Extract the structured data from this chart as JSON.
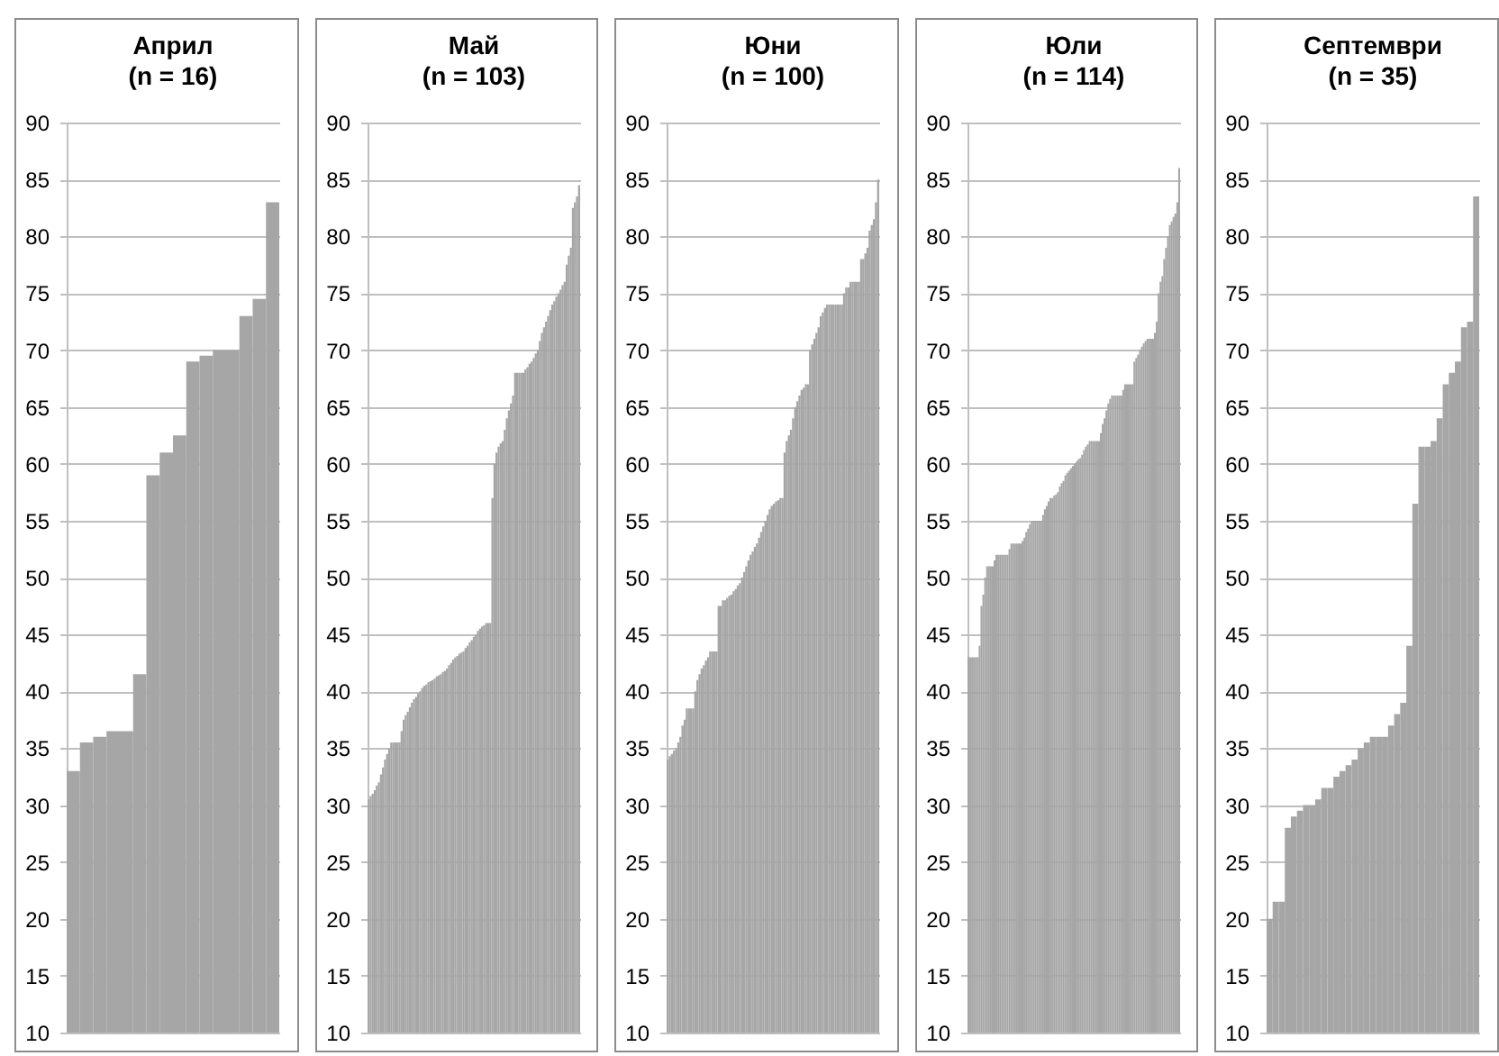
{
  "chart_data": [
    {
      "type": "bar",
      "title": "Април\n(n = 16)",
      "color": "#a6a6a6",
      "ylim": [
        10,
        90
      ],
      "yticks": [
        10,
        15,
        20,
        25,
        30,
        35,
        40,
        45,
        50,
        55,
        60,
        65,
        70,
        75,
        80,
        85,
        90
      ],
      "grid": "y",
      "tick_labels": "y",
      "categories": [
        null,
        null,
        null,
        null,
        null,
        null,
        null,
        null,
        null,
        null,
        null,
        null,
        null,
        null,
        null,
        null
      ],
      "values": [
        33,
        35.5,
        36,
        36.5,
        36.5,
        41.5,
        59,
        61,
        62.5,
        69,
        69.5,
        70,
        70,
        73,
        74.5,
        83
      ]
    },
    {
      "type": "bar",
      "title": "Май\n(n = 103)",
      "color": "#a6a6a6",
      "ylim": [
        10,
        90
      ],
      "yticks": [
        10,
        15,
        20,
        25,
        30,
        35,
        40,
        45,
        50,
        55,
        60,
        65,
        70,
        75,
        80,
        85,
        90
      ],
      "grid": "y",
      "tick_labels": "y",
      "categories": [
        null,
        null,
        null,
        null,
        null,
        null,
        null,
        null,
        null,
        null,
        null,
        null,
        null,
        null,
        null,
        null,
        null,
        null,
        null,
        null,
        null,
        null,
        null,
        null,
        null,
        null,
        null,
        null,
        null,
        null,
        null,
        null,
        null,
        null,
        null,
        null,
        null,
        null,
        null,
        null,
        null,
        null,
        null,
        null,
        null,
        null,
        null,
        null,
        null,
        null,
        null,
        null,
        null,
        null,
        null,
        null,
        null,
        null,
        null,
        null,
        null,
        null,
        null,
        null,
        null,
        null,
        null,
        null,
        null,
        null,
        null,
        null,
        null,
        null,
        null,
        null,
        null,
        null,
        null,
        null,
        null,
        null,
        null,
        null,
        null,
        null,
        null,
        null,
        null,
        null,
        null,
        null,
        null,
        null,
        null,
        null,
        null,
        null,
        null,
        null,
        null,
        null,
        null
      ],
      "values": [
        30.5,
        30.8,
        31,
        31.3,
        31.7,
        32,
        32.7,
        33.3,
        34,
        34.5,
        35,
        35.5,
        35.5,
        35.5,
        35.5,
        35.5,
        36.5,
        37.5,
        37.9,
        38.2,
        38.6,
        39,
        39.3,
        39.5,
        39.8,
        40,
        40.3,
        40.5,
        40.6,
        40.8,
        40.9,
        41,
        41.1,
        41.3,
        41.4,
        41.5,
        41.7,
        41.8,
        42,
        42.3,
        42.5,
        42.8,
        43,
        43.1,
        43.3,
        43.4,
        43.5,
        43.8,
        44,
        44.3,
        44.5,
        44.8,
        45,
        45.3,
        45.5,
        45.7,
        45.8,
        46,
        46,
        46,
        57,
        60,
        61,
        61.5,
        61.8,
        62,
        63,
        64,
        64.7,
        65.3,
        66,
        68,
        68,
        68,
        68,
        68,
        68.3,
        68.5,
        68.8,
        69,
        69.3,
        69.7,
        70,
        70.8,
        71.5,
        72,
        72.5,
        73,
        73.5,
        74,
        74.3,
        74.7,
        75,
        75.3,
        75.7,
        76,
        77.5,
        78.3,
        79,
        82.5,
        83,
        83.5,
        84.5
      ]
    },
    {
      "type": "bar",
      "title": "Юни\n(n = 100)",
      "color": "#a6a6a6",
      "ylim": [
        10,
        90
      ],
      "yticks": [
        10,
        15,
        20,
        25,
        30,
        35,
        40,
        45,
        50,
        55,
        60,
        65,
        70,
        75,
        80,
        85,
        90
      ],
      "grid": "y",
      "tick_labels": "y",
      "categories": [
        null,
        null,
        null,
        null,
        null,
        null,
        null,
        null,
        null,
        null,
        null,
        null,
        null,
        null,
        null,
        null,
        null,
        null,
        null,
        null,
        null,
        null,
        null,
        null,
        null,
        null,
        null,
        null,
        null,
        null,
        null,
        null,
        null,
        null,
        null,
        null,
        null,
        null,
        null,
        null,
        null,
        null,
        null,
        null,
        null,
        null,
        null,
        null,
        null,
        null,
        null,
        null,
        null,
        null,
        null,
        null,
        null,
        null,
        null,
        null,
        null,
        null,
        null,
        null,
        null,
        null,
        null,
        null,
        null,
        null,
        null,
        null,
        null,
        null,
        null,
        null,
        null,
        null,
        null,
        null,
        null,
        null,
        null,
        null,
        null,
        null,
        null,
        null,
        null,
        null,
        null,
        null,
        null,
        null,
        null,
        null,
        null,
        null,
        null,
        null
      ],
      "values": [
        34,
        34.3,
        34.5,
        34.8,
        35,
        35.5,
        36,
        37,
        37.5,
        38.5,
        38.5,
        38.5,
        38.5,
        40,
        41,
        41.5,
        42,
        42.3,
        42.7,
        43,
        43.5,
        43.5,
        43.5,
        43.5,
        47.5,
        47.5,
        48,
        48,
        48.2,
        48.4,
        48.5,
        48.8,
        49,
        49.3,
        49.5,
        50,
        50.5,
        51,
        51.5,
        52,
        52.3,
        52.7,
        53,
        53.5,
        54,
        54.5,
        55,
        55.5,
        56,
        56.3,
        56.5,
        56.7,
        56.8,
        57,
        57,
        61,
        62,
        62.5,
        63,
        64,
        65,
        65.5,
        66,
        66.5,
        66.7,
        67,
        67,
        70,
        70.5,
        71,
        71.5,
        72,
        73,
        73.3,
        73.7,
        74,
        74,
        74,
        74,
        74,
        74,
        74,
        74,
        75,
        75.5,
        75.5,
        76,
        76,
        76,
        76,
        76,
        78,
        78,
        78.5,
        79,
        80.5,
        81,
        81.5,
        83,
        85
      ]
    },
    {
      "type": "bar",
      "title": "Юли\n(n = 114)",
      "color": "#a6a6a6",
      "ylim": [
        10,
        90
      ],
      "yticks": [
        10,
        15,
        20,
        25,
        30,
        35,
        40,
        45,
        50,
        55,
        60,
        65,
        70,
        75,
        80,
        85,
        90
      ],
      "grid": "y",
      "tick_labels": "y",
      "categories": [
        null,
        null,
        null,
        null,
        null,
        null,
        null,
        null,
        null,
        null,
        null,
        null,
        null,
        null,
        null,
        null,
        null,
        null,
        null,
        null,
        null,
        null,
        null,
        null,
        null,
        null,
        null,
        null,
        null,
        null,
        null,
        null,
        null,
        null,
        null,
        null,
        null,
        null,
        null,
        null,
        null,
        null,
        null,
        null,
        null,
        null,
        null,
        null,
        null,
        null,
        null,
        null,
        null,
        null,
        null,
        null,
        null,
        null,
        null,
        null,
        null,
        null,
        null,
        null,
        null,
        null,
        null,
        null,
        null,
        null,
        null,
        null,
        null,
        null,
        null,
        null,
        null,
        null,
        null,
        null,
        null,
        null,
        null,
        null,
        null,
        null,
        null,
        null,
        null,
        null,
        null,
        null,
        null,
        null,
        null,
        null,
        null,
        null,
        null,
        null,
        null,
        null,
        null,
        null,
        null,
        null,
        null,
        null,
        null,
        null,
        null,
        null,
        null,
        null
      ],
      "values": [
        43,
        43,
        43,
        43,
        43,
        43,
        44,
        47.5,
        48.5,
        50,
        51,
        51,
        51,
        51,
        51.5,
        52,
        52,
        52,
        52,
        52,
        52,
        52,
        52.5,
        53,
        53,
        53,
        53,
        53,
        53,
        53.2,
        53.5,
        54,
        54.3,
        54.7,
        55,
        55,
        55,
        55,
        55,
        55,
        55.5,
        56,
        56.3,
        56.7,
        57,
        57,
        57.2,
        57.3,
        57.5,
        58,
        58.3,
        58.5,
        59,
        59.2,
        59.4,
        59.6,
        59.8,
        60,
        60.2,
        60.4,
        60.5,
        60.8,
        61.2,
        61.5,
        61.7,
        62,
        62,
        62,
        62,
        62,
        62,
        62.7,
        63.5,
        64,
        64.7,
        65.3,
        65.7,
        66,
        66,
        66,
        66,
        66,
        66,
        66.5,
        67,
        67,
        67,
        67,
        67,
        69,
        69.3,
        69.6,
        70,
        70.3,
        70.6,
        70.8,
        71,
        71,
        71,
        71,
        71.5,
        72.5,
        75,
        76,
        76.5,
        78,
        79,
        80,
        81,
        81.3,
        81.7,
        82,
        83,
        86
      ]
    },
    {
      "type": "bar",
      "title": "Септември\n(n = 35)",
      "color": "#a6a6a6",
      "ylim": [
        10,
        90
      ],
      "yticks": [
        10,
        15,
        20,
        25,
        30,
        35,
        40,
        45,
        50,
        55,
        60,
        65,
        70,
        75,
        80,
        85,
        90
      ],
      "grid": "y",
      "tick_labels": "y",
      "categories": [
        null,
        null,
        null,
        null,
        null,
        null,
        null,
        null,
        null,
        null,
        null,
        null,
        null,
        null,
        null,
        null,
        null,
        null,
        null,
        null,
        null,
        null,
        null,
        null,
        null,
        null,
        null,
        null,
        null,
        null,
        null,
        null,
        null,
        null,
        null
      ],
      "values": [
        20,
        21.5,
        21.5,
        28,
        29,
        29.5,
        30,
        30,
        30.5,
        31.5,
        31.5,
        32.5,
        33,
        33.5,
        34,
        35,
        35.5,
        36,
        36,
        36,
        37,
        38,
        39,
        44,
        56.5,
        61.5,
        61.5,
        62,
        64,
        67,
        68,
        69,
        72,
        72.5,
        83.5
      ]
    }
  ]
}
